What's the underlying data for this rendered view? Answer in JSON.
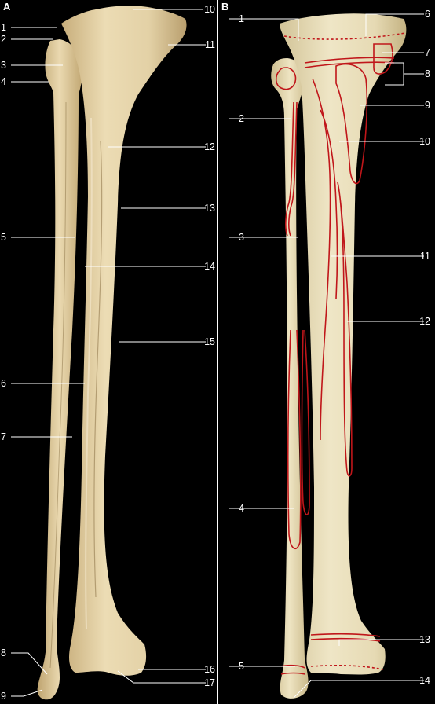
{
  "figure": {
    "panels": [
      {
        "letter": "A",
        "left_labels": [
          "1",
          "2",
          "3",
          "4",
          "5",
          "6",
          "7",
          "8",
          "9"
        ],
        "right_labels": [
          "10",
          "11",
          "12",
          "13",
          "14",
          "15",
          "16",
          "17"
        ]
      },
      {
        "letter": "B",
        "left_labels": [
          "1",
          "2",
          "3",
          "4",
          "5"
        ],
        "right_labels": [
          "6",
          "7",
          "8",
          "9",
          "10",
          "11",
          "12",
          "13",
          "14"
        ]
      }
    ],
    "colors": {
      "background": "#000000",
      "bone": "#e6d6ad",
      "bone_shadow": "#b59c6c",
      "attachment_lines": "#c0161a",
      "labels": "#ffffff"
    }
  }
}
